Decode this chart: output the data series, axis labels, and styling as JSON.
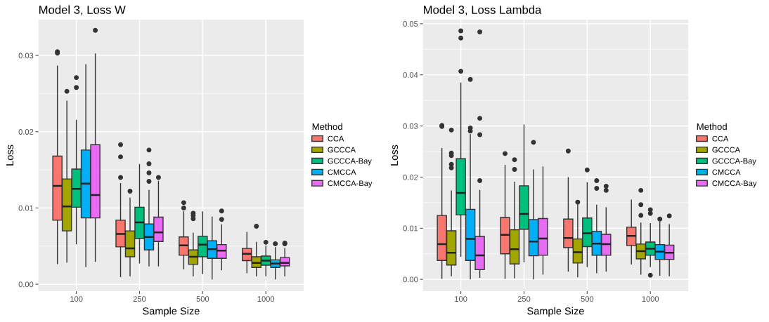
{
  "chart_data": [
    {
      "type": "box",
      "title": "Model 3, Loss W",
      "xlabel": "Sample Size",
      "ylabel": "Loss",
      "legend_title": "Method",
      "legend": "right",
      "grid": true,
      "categories": [
        "100",
        "250",
        "500",
        "1000"
      ],
      "ylim": [
        -0.0009,
        0.0347
      ],
      "yticks": [
        {
          "value": 0,
          "label": "0.00"
        },
        {
          "value": 0.01,
          "label": "0.01"
        },
        {
          "value": 0.02,
          "label": "0.02"
        },
        {
          "value": 0.03,
          "label": "0.03"
        }
      ],
      "series": [
        {
          "name": "CCA",
          "color": "#f8766d",
          "boxes": [
            {
              "low": 0.0027,
              "q1": 0.0084,
              "median": 0.0129,
              "q3": 0.0168,
              "high": 0.0286,
              "outliers": [
                0.0305,
                0.0303
              ]
            },
            {
              "low": 0.001,
              "q1": 0.0049,
              "median": 0.0066,
              "q3": 0.0084,
              "high": 0.0132,
              "outliers": [
                0.0183,
                0.0167,
                0.014
              ]
            },
            {
              "low": 0.002,
              "q1": 0.0038,
              "median": 0.0051,
              "q3": 0.0062,
              "high": 0.0095,
              "outliers": [
                0.0107,
                0.01
              ]
            },
            {
              "low": 0.0015,
              "q1": 0.0031,
              "median": 0.004,
              "q3": 0.0047,
              "high": 0.0068
            }
          ]
        },
        {
          "name": "GCCCA",
          "color": "#a3a500",
          "boxes": [
            {
              "low": 0.0029,
              "q1": 0.007,
              "median": 0.0102,
              "q3": 0.0138,
              "high": 0.024,
              "outliers": [
                0.0253
              ]
            },
            {
              "low": 0.0011,
              "q1": 0.0036,
              "median": 0.0047,
              "q3": 0.007,
              "high": 0.0113,
              "outliers": [
                0.0122
              ]
            },
            {
              "low": 0.0011,
              "q1": 0.0026,
              "median": 0.0036,
              "q3": 0.0045,
              "high": 0.0067,
              "outliers": [
                0.0093,
                0.009,
                0.0086
              ]
            },
            {
              "low": 0.0011,
              "q1": 0.0022,
              "median": 0.0028,
              "q3": 0.0036,
              "high": 0.0055,
              "outliers": [
                0.0076
              ]
            }
          ]
        },
        {
          "name": "GCCCA-Bay",
          "color": "#00bf7d",
          "boxes": [
            {
              "low": 0.0053,
              "q1": 0.0101,
              "median": 0.0125,
              "q3": 0.0151,
              "high": 0.0215,
              "outliers": [
                0.0271,
                0.0258
              ]
            },
            {
              "low": 0.0028,
              "q1": 0.006,
              "median": 0.0081,
              "q3": 0.0101,
              "high": 0.0157
            },
            {
              "low": 0.0014,
              "q1": 0.0036,
              "median": 0.0052,
              "q3": 0.0063,
              "high": 0.0095
            },
            {
              "low": 0.0011,
              "q1": 0.0025,
              "median": 0.0031,
              "q3": 0.0037,
              "high": 0.005,
              "outliers": [
                0.0055
              ]
            }
          ]
        },
        {
          "name": "CMCCA",
          "color": "#00b0f6",
          "boxes": [
            {
              "low": 0.0023,
              "q1": 0.0087,
              "median": 0.0132,
              "q3": 0.0176,
              "high": 0.0288
            },
            {
              "low": 0.0024,
              "q1": 0.0045,
              "median": 0.0062,
              "q3": 0.0079,
              "high": 0.0123,
              "outliers": [
                0.0176,
                0.0158,
                0.0146,
                0.0135
              ]
            },
            {
              "low": 0.0007,
              "q1": 0.0034,
              "median": 0.0046,
              "q3": 0.0057,
              "high": 0.0088
            },
            {
              "low": 0.0007,
              "q1": 0.0022,
              "median": 0.0027,
              "q3": 0.0032,
              "high": 0.0048,
              "outliers": [
                0.0053
              ]
            }
          ]
        },
        {
          "name": "CMCCA-Bay",
          "color": "#e76bf3",
          "boxes": [
            {
              "low": 0.003,
              "q1": 0.0087,
              "median": 0.0117,
              "q3": 0.0183,
              "high": 0.0302,
              "outliers": [
                0.0333
              ]
            },
            {
              "low": 0.0024,
              "q1": 0.0056,
              "median": 0.0068,
              "q3": 0.0088,
              "high": 0.0135,
              "outliers": [
                0.014
              ]
            },
            {
              "low": 0.0019,
              "q1": 0.0034,
              "median": 0.0044,
              "q3": 0.0052,
              "high": 0.0078,
              "outliers": [
                0.0096,
                0.0085
              ]
            },
            {
              "low": 0.0011,
              "q1": 0.0024,
              "median": 0.0028,
              "q3": 0.0035,
              "high": 0.0047,
              "outliers": [
                0.0054,
                0.0053
              ]
            }
          ]
        }
      ]
    },
    {
      "type": "box",
      "title": "Model 3, Loss Lambda",
      "xlabel": "Sample Size",
      "ylabel": "Loss",
      "legend_title": "Method",
      "legend": "right",
      "grid": true,
      "categories": [
        "100",
        "250",
        "500",
        "1000"
      ],
      "ylim": [
        -0.0023,
        0.0508
      ],
      "yticks": [
        {
          "value": 0,
          "label": "0.00"
        },
        {
          "value": 0.01,
          "label": "0.01"
        },
        {
          "value": 0.02,
          "label": "0.02"
        },
        {
          "value": 0.03,
          "label": "0.03"
        },
        {
          "value": 0.04,
          "label": "0.04"
        },
        {
          "value": 0.05,
          "label": "0.05"
        }
      ],
      "series": [
        {
          "name": "CCA",
          "color": "#f8766d",
          "boxes": [
            {
              "low": 0.0002,
              "q1": 0.0037,
              "median": 0.0069,
              "q3": 0.0125,
              "high": 0.0256,
              "outliers": [
                0.0301,
                0.0299
              ]
            },
            {
              "low": 0.0002,
              "q1": 0.005,
              "median": 0.0087,
              "q3": 0.0121,
              "high": 0.0223,
              "outliers": [
                0.0246
              ]
            },
            {
              "low": 0.0016,
              "q1": 0.0062,
              "median": 0.0081,
              "q3": 0.0118,
              "high": 0.0199,
              "outliers": [
                0.0251
              ]
            },
            {
              "low": 0.003,
              "q1": 0.0066,
              "median": 0.0085,
              "q3": 0.0102,
              "high": 0.0155
            }
          ]
        },
        {
          "name": "GCCCA",
          "color": "#a3a500",
          "boxes": [
            {
              "low": 0.0007,
              "q1": 0.0028,
              "median": 0.0052,
              "q3": 0.0095,
              "high": 0.0173,
              "outliers": [
                0.0292,
                0.0247,
                0.0242,
                0.0225,
                0.0218
              ]
            },
            {
              "low": 0.0003,
              "q1": 0.003,
              "median": 0.0059,
              "q3": 0.0097,
              "high": 0.019,
              "outliers": [
                0.0234,
                0.0215
              ]
            },
            {
              "low": 0.0005,
              "q1": 0.0032,
              "median": 0.0053,
              "q3": 0.0079,
              "high": 0.0146,
              "outliers": [
                0.0151
              ]
            },
            {
              "low": 0.001,
              "q1": 0.004,
              "median": 0.0055,
              "q3": 0.0069,
              "high": 0.011,
              "outliers": [
                0.0174,
                0.0146,
                0.0125
              ]
            }
          ]
        },
        {
          "name": "GCCCA-Bay",
          "color": "#00bf7d",
          "boxes": [
            {
              "low": 0.0045,
              "q1": 0.0126,
              "median": 0.0169,
              "q3": 0.0236,
              "high": 0.0384,
              "outliers": [
                0.0486,
                0.0472,
                0.0407
              ]
            },
            {
              "low": 0.0034,
              "q1": 0.0098,
              "median": 0.0128,
              "q3": 0.0183,
              "high": 0.0302
            },
            {
              "low": 0.0025,
              "q1": 0.0064,
              "median": 0.009,
              "q3": 0.012,
              "high": 0.0189,
              "outliers": [
                0.0214
              ]
            },
            {
              "low": 0.0025,
              "q1": 0.0047,
              "median": 0.006,
              "q3": 0.0073,
              "high": 0.0109,
              "outliers": [
                0.0136,
                0.0129,
                0.0008
              ]
            }
          ]
        },
        {
          "name": "CMCCA",
          "color": "#00b0f6",
          "boxes": [
            {
              "low": 0.0001,
              "q1": 0.0037,
              "median": 0.0079,
              "q3": 0.0137,
              "high": 0.0283,
              "outliers": [
                0.0391,
                0.0296,
                0.029
              ]
            },
            {
              "low": 0.0001,
              "q1": 0.0046,
              "median": 0.0074,
              "q3": 0.0117,
              "high": 0.0214,
              "outliers": [
                0.0268
              ]
            },
            {
              "low": 0.0013,
              "q1": 0.0047,
              "median": 0.007,
              "q3": 0.0094,
              "high": 0.0145,
              "outliers": [
                0.0193,
                0.0178
              ]
            },
            {
              "low": 0.0008,
              "q1": 0.0039,
              "median": 0.0054,
              "q3": 0.0068,
              "high": 0.0112,
              "outliers": [
                0.0118
              ]
            }
          ]
        },
        {
          "name": "CMCCA-Bay",
          "color": "#e76bf3",
          "boxes": [
            {
              "low": 0.0004,
              "q1": 0.0019,
              "median": 0.0047,
              "q3": 0.0084,
              "high": 0.0174,
              "outliers": [
                0.0484,
                0.0315,
                0.0283,
                0.0193
              ]
            },
            {
              "low": 0.001,
              "q1": 0.0047,
              "median": 0.008,
              "q3": 0.0119,
              "high": 0.022
            },
            {
              "low": 0.0016,
              "q1": 0.0047,
              "median": 0.0069,
              "q3": 0.0088,
              "high": 0.014,
              "outliers": [
                0.0182,
                0.0174
              ]
            },
            {
              "low": 0.0007,
              "q1": 0.0039,
              "median": 0.0052,
              "q3": 0.0067,
              "high": 0.0107,
              "outliers": [
                0.0124
              ]
            }
          ]
        }
      ]
    }
  ]
}
